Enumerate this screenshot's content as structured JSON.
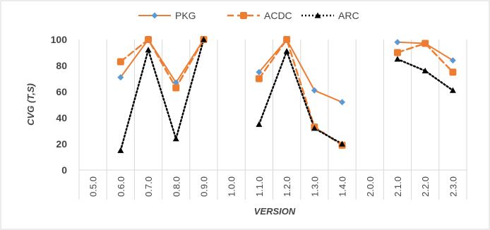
{
  "chart_data": {
    "type": "line",
    "categories": [
      "0.5.0",
      "0.6.0",
      "0.7.0",
      "0.8.0",
      "0.9.0",
      "1.0.0",
      "1.1.0",
      "1.2.0",
      "1.3.0",
      "1.4.0",
      "2.0.0",
      "2.1.0",
      "2.2.0",
      "2.3.0"
    ],
    "series": [
      {
        "name": "PKG",
        "color": "#5b9bd5",
        "line_color": "#ed7d31",
        "line_style": "solid",
        "marker": "diamond",
        "values": [
          null,
          71,
          100,
          67,
          100,
          null,
          75,
          100,
          61,
          52,
          null,
          98,
          97,
          84
        ]
      },
      {
        "name": "ACDC",
        "color": "#ed7d31",
        "line_color": "#ed7d31",
        "line_style": "dashed",
        "marker": "square",
        "values": [
          null,
          83,
          100,
          63,
          100,
          null,
          70,
          100,
          33,
          19,
          null,
          90,
          97,
          75
        ]
      },
      {
        "name": "ARC",
        "color": "#000000",
        "line_color": "#000000",
        "line_style": "dotted",
        "marker": "triangle",
        "values": [
          null,
          15,
          92,
          24,
          100,
          null,
          35,
          91,
          32,
          20,
          null,
          85,
          76,
          61
        ]
      }
    ],
    "xlabel": "VERSION",
    "ylabel": "CVG (T,S)",
    "ylim": [
      0,
      100
    ],
    "yticks": [
      0,
      20,
      40,
      60,
      80,
      100
    ],
    "grid": "vertical-category-separators",
    "legend_position": "top-center"
  }
}
